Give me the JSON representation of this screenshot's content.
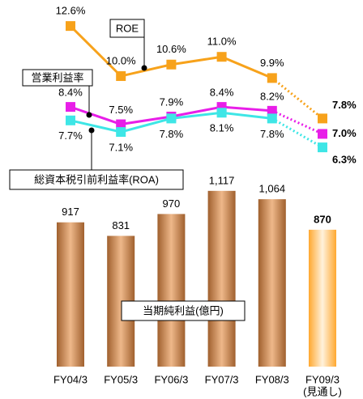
{
  "chart_data": {
    "type": "bar",
    "categories": [
      "FY04/3",
      "FY05/3",
      "FY06/3",
      "FY07/3",
      "FY08/3",
      "FY09/3"
    ],
    "category_note": "(見通し)",
    "ylim": [
      0,
      2330
    ],
    "y2lim": [
      -5.08,
      13.95
    ],
    "series": [
      {
        "name": "当期純利益(億円)",
        "type": "bar",
        "color": "#c07a40",
        "values": [
          917,
          831,
          970,
          1117,
          1064,
          870
        ],
        "value_labels": [
          "917",
          "831",
          "970",
          "1,117",
          "1,064",
          "870"
        ]
      },
      {
        "name": "ROE",
        "type": "line",
        "axis": "y2",
        "color": "#f7a21b",
        "values": [
          12.6,
          10.0,
          10.6,
          11.0,
          9.9,
          7.8
        ],
        "value_labels": [
          "12.6%",
          "10.0%",
          "10.6%",
          "11.0%",
          "9.9%",
          "7.8%"
        ]
      },
      {
        "name": "営業利益率",
        "type": "line",
        "axis": "y2",
        "color": "#e81ee8",
        "values": [
          8.4,
          7.5,
          7.9,
          8.4,
          8.2,
          7.0
        ],
        "value_labels": [
          "8.4%",
          "7.5%",
          "7.9%",
          "8.4%",
          "8.2%",
          "7.0%"
        ]
      },
      {
        "name": "総資本税引前利益率(ROA)",
        "type": "line",
        "axis": "y2",
        "color": "#3ee6e6",
        "values": [
          7.7,
          7.1,
          7.8,
          8.1,
          7.8,
          6.3
        ],
        "value_labels": [
          "7.7%",
          "7.1%",
          "7.8%",
          "8.1%",
          "7.8%",
          "6.3%"
        ]
      }
    ]
  }
}
